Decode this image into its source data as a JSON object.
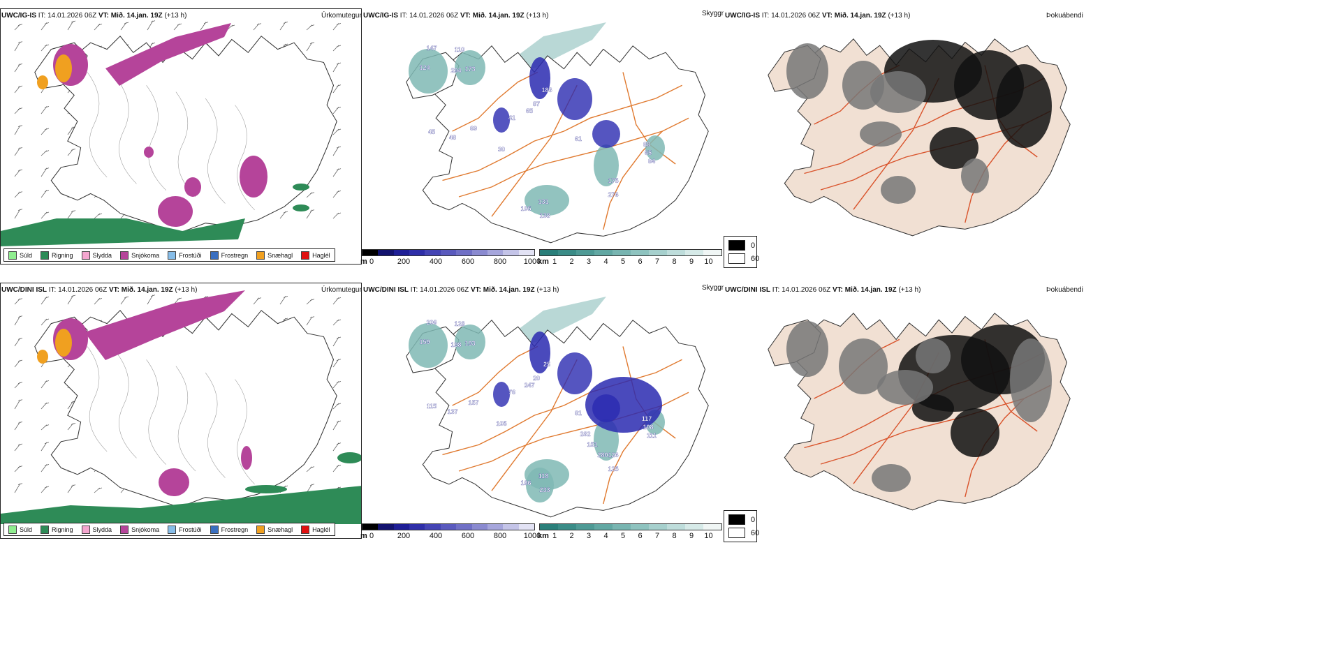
{
  "rows": [
    {
      "model": "UWC/IG-IS",
      "it_label": "IT:",
      "it_value": "14.01.2026 06Z",
      "vt_label": "VT:",
      "vt_value": "Mið. 14.jan. 19Z",
      "lead": "(+13 h)",
      "precip_title": "Úrkomutegund",
      "cloud_title": "Skyggni",
      "fog_title": "Þokuábendi",
      "cloud_labels": [
        "147",
        "110",
        "124",
        "294",
        "173",
        "186",
        "87",
        "65",
        "41",
        "69",
        "61",
        "45",
        "48",
        "30",
        "65",
        "88",
        "84",
        "175",
        "276",
        "131",
        "105",
        "138"
      ]
    },
    {
      "model": "UWC/DINI ISL",
      "it_label": "IT:",
      "it_value": "14.01.2026 06Z",
      "vt_label": "VT:",
      "vt_value": "Mið. 14.jan. 19Z",
      "lead": "(+13 h)",
      "precip_title": "Úrkomutegund",
      "cloud_title": "Skyggni",
      "fog_title": "Þokuábendi",
      "cloud_labels": [
        "206",
        "128",
        "159",
        "198",
        "193",
        "25",
        "20",
        "247",
        "76",
        "157",
        "81",
        "115",
        "137",
        "105",
        "108",
        "117",
        "111",
        "126",
        "125",
        "118",
        "186",
        "233",
        "282",
        "151",
        "280"
      ]
    }
  ],
  "precip_legend": [
    {
      "label": "Súld",
      "color": "#90ee90"
    },
    {
      "label": "Rigning",
      "color": "#2e8b57"
    },
    {
      "label": "Slydda",
      "color": "#f4a6cf"
    },
    {
      "label": "Snjókoma",
      "color": "#b5449a"
    },
    {
      "label": "Frostúði",
      "color": "#87bde8"
    },
    {
      "label": "Frostregn",
      "color": "#3a6fc0"
    },
    {
      "label": "Snæhagl",
      "color": "#f0a020"
    },
    {
      "label": "Haglél",
      "color": "#e01010"
    }
  ],
  "cloud_base_bar": {
    "unit": "m",
    "ticks": [
      "0",
      "200",
      "400",
      "600",
      "800",
      "1000"
    ],
    "colors": [
      "#000000",
      "#12126e",
      "#1e1e96",
      "#2e2ea8",
      "#4444b4",
      "#5a5abe",
      "#7070c6",
      "#8a8ad0",
      "#a6a6dc",
      "#c4c4e8",
      "#e2e2f4"
    ]
  },
  "visibility_bar": {
    "unit": "km",
    "ticks": [
      "1",
      "2",
      "3",
      "4",
      "5",
      "6",
      "7",
      "8",
      "9",
      "10"
    ],
    "colors": [
      "#2a7f7a",
      "#3a8c87",
      "#4e9a95",
      "#62a8a3",
      "#78b5b1",
      "#8ec3bf",
      "#a6d0cd",
      "#bedddb",
      "#d6eae8",
      "#f0f6f5"
    ]
  },
  "fog_legend": [
    {
      "label": "0",
      "color": "#000000"
    },
    {
      "label": "60",
      "color": "#ffffff"
    }
  ],
  "colors": {
    "land": "#f1e0d3",
    "road": "#e07a30",
    "coast": "#333333",
    "rain": "#2e8b57",
    "snow": "#b5449a",
    "hail": "#f0a020",
    "cloud_teal": "#7fb8b4",
    "cloud_blue": "#2a2ab0"
  }
}
